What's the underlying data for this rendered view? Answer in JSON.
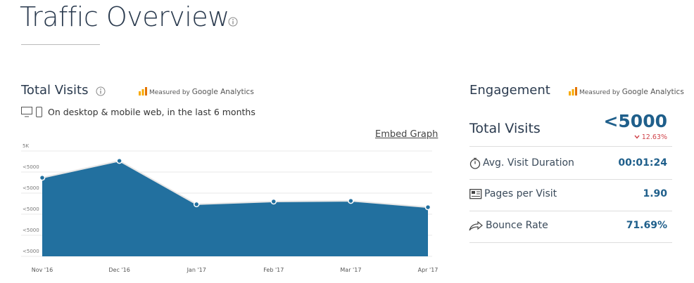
{
  "header": {
    "title": "Traffic Overview"
  },
  "visits_panel": {
    "title": "Total Visits",
    "measured_by": "Measured by",
    "source": "Google Analytics",
    "subtitle": "On desktop & mobile web, in the last 6 months",
    "embed": "Embed Graph"
  },
  "chart_data": {
    "type": "area",
    "categories": [
      "Nov '16",
      "Dec '16",
      "Jan '17",
      "Feb '17",
      "Mar '17",
      "Apr '17"
    ],
    "values": [
      3730,
      4530,
      2470,
      2600,
      2630,
      2330
    ],
    "color": "#22709f",
    "ylim": [
      0,
      5000
    ],
    "yticks": [
      {
        "value": 0,
        "label": "<5000"
      },
      {
        "value": 1000,
        "label": "<5000"
      },
      {
        "value": 2000,
        "label": "<5000"
      },
      {
        "value": 3000,
        "label": "<5000"
      },
      {
        "value": 4000,
        "label": "<5000"
      },
      {
        "value": 5000,
        "label": "5K"
      }
    ],
    "grid": true
  },
  "engagement": {
    "title": "Engagement",
    "measured_by": "Measured by",
    "source": "Google Analytics",
    "total_visits": {
      "label": "Total Visits",
      "value": "<5000",
      "change": "12.63%"
    },
    "rows": [
      {
        "label": "Avg. Visit Duration",
        "value": "00:01:24"
      },
      {
        "label": "Pages per Visit",
        "value": "1.90"
      },
      {
        "label": "Bounce Rate",
        "value": "71.69%"
      }
    ]
  }
}
